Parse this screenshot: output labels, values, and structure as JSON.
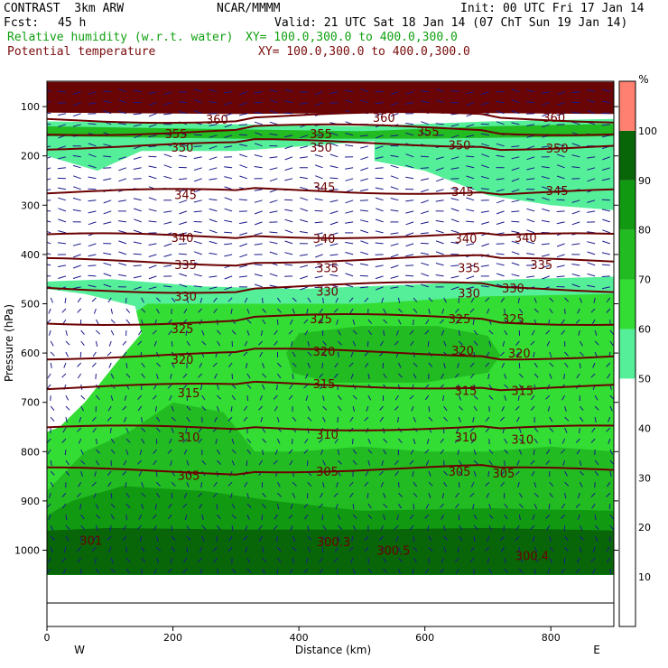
{
  "header": {
    "model": "CONTRAST  3km ARW",
    "org": "NCAR/MMMM",
    "init": "Init: 00 UTC Fri 17 Jan 14",
    "fcst_label": "Fcst:",
    "fcst_value": "45 h",
    "valid": "Valid: 21 UTC Sat 18 Jan 14 (07 ChT Sun 19 Jan 14)",
    "field1_name": "Relative humidity (w.r.t. water)",
    "field1_xy": "XY= 100.0,300.0 to 400.0,300.0",
    "field2_name": "Potential temperature",
    "field2_xy": "XY= 100.0,300.0 to 400.0,300.0"
  },
  "colors": {
    "theta_line": "#6b0000",
    "wind_barb": "#1a1a8c",
    "rh_levels": [
      "#ffffff",
      "#55ee99",
      "#33dd33",
      "#22bb22",
      "#119911",
      "#086608",
      "#ff8070"
    ]
  },
  "chart_data": {
    "type": "heatmap",
    "title": "",
    "xlabel": "Distance (km)",
    "ylabel": "Pressure (hPa)",
    "xlim": [
      0,
      900
    ],
    "ylim": [
      1050,
      50
    ],
    "x_ticks": [
      "0",
      "200",
      "400",
      "600",
      "800"
    ],
    "y_ticks": [
      "100",
      "200",
      "300",
      "400",
      "500",
      "600",
      "700",
      "800",
      "900",
      "1000"
    ],
    "x_end_labels": {
      "left": "W",
      "right": "E"
    },
    "colorbar": {
      "unit": "%",
      "levels": [
        50,
        60,
        70,
        80,
        90,
        100
      ],
      "tick_labels": [
        "10",
        "20",
        "30",
        "40",
        "50",
        "60",
        "70",
        "80",
        "90",
        "100"
      ]
    },
    "theta_contours": [
      {
        "value": 360,
        "p": 125
      },
      {
        "value": 355,
        "p": 150
      },
      {
        "value": 350,
        "p": 180
      },
      {
        "value": 345,
        "p": 275
      },
      {
        "value": 340,
        "p": 365
      },
      {
        "value": 335,
        "p": 415
      },
      {
        "value": 330,
        "p": 470
      },
      {
        "value": 325,
        "p": 535
      },
      {
        "value": 320,
        "p": 605
      },
      {
        "value": 315,
        "p": 670
      },
      {
        "value": 310,
        "p": 755
      },
      {
        "value": 305,
        "p": 840
      }
    ],
    "contour_labels": [
      {
        "text": "360",
        "x": 270,
        "p": 125
      },
      {
        "text": "360",
        "x": 535,
        "p": 122
      },
      {
        "text": "360",
        "x": 805,
        "p": 122
      },
      {
        "text": "355",
        "x": 205,
        "p": 155
      },
      {
        "text": "355",
        "x": 435,
        "p": 155
      },
      {
        "text": "355",
        "x": 605,
        "p": 150
      },
      {
        "text": "350",
        "x": 215,
        "p": 182
      },
      {
        "text": "350",
        "x": 435,
        "p": 182
      },
      {
        "text": "350",
        "x": 655,
        "p": 178
      },
      {
        "text": "350",
        "x": 810,
        "p": 184
      },
      {
        "text": "345",
        "x": 220,
        "p": 278
      },
      {
        "text": "345",
        "x": 440,
        "p": 263
      },
      {
        "text": "345",
        "x": 660,
        "p": 272
      },
      {
        "text": "345",
        "x": 810,
        "p": 270
      },
      {
        "text": "340",
        "x": 215,
        "p": 365
      },
      {
        "text": "340",
        "x": 440,
        "p": 367
      },
      {
        "text": "340",
        "x": 665,
        "p": 367
      },
      {
        "text": "340",
        "x": 760,
        "p": 365
      },
      {
        "text": "335",
        "x": 220,
        "p": 420
      },
      {
        "text": "335",
        "x": 445,
        "p": 427
      },
      {
        "text": "335",
        "x": 670,
        "p": 427
      },
      {
        "text": "335",
        "x": 785,
        "p": 420
      },
      {
        "text": "330",
        "x": 220,
        "p": 484
      },
      {
        "text": "330",
        "x": 445,
        "p": 474
      },
      {
        "text": "330",
        "x": 670,
        "p": 478
      },
      {
        "text": "330",
        "x": 740,
        "p": 468
      },
      {
        "text": "325",
        "x": 215,
        "p": 550
      },
      {
        "text": "325",
        "x": 435,
        "p": 530
      },
      {
        "text": "325",
        "x": 655,
        "p": 530
      },
      {
        "text": "325",
        "x": 740,
        "p": 530
      },
      {
        "text": "320",
        "x": 215,
        "p": 613
      },
      {
        "text": "320",
        "x": 440,
        "p": 596
      },
      {
        "text": "320",
        "x": 660,
        "p": 594
      },
      {
        "text": "320",
        "x": 750,
        "p": 600
      },
      {
        "text": "315",
        "x": 225,
        "p": 680
      },
      {
        "text": "315",
        "x": 440,
        "p": 662
      },
      {
        "text": "315",
        "x": 665,
        "p": 676
      },
      {
        "text": "315",
        "x": 755,
        "p": 676
      },
      {
        "text": "310",
        "x": 225,
        "p": 770
      },
      {
        "text": "310",
        "x": 445,
        "p": 765
      },
      {
        "text": "310",
        "x": 665,
        "p": 770
      },
      {
        "text": "310",
        "x": 755,
        "p": 775
      },
      {
        "text": "305",
        "x": 225,
        "p": 848
      },
      {
        "text": "305",
        "x": 445,
        "p": 840
      },
      {
        "text": "305",
        "x": 655,
        "p": 840
      },
      {
        "text": "305",
        "x": 725,
        "p": 843
      },
      {
        "text": "301",
        "x": 70,
        "p": 980
      },
      {
        "text": "300.3",
        "x": 455,
        "p": 983
      },
      {
        "text": "300.5",
        "x": 550,
        "p": 1000
      },
      {
        "text": "300.4",
        "x": 770,
        "p": 1011
      }
    ]
  }
}
